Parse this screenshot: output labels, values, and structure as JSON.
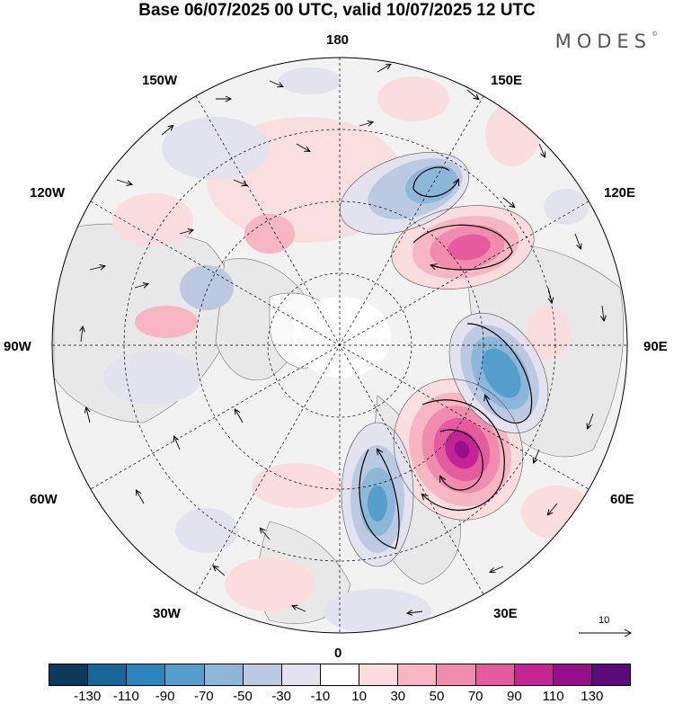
{
  "title": "Base 06/07/2025 00 UTC, valid 10/07/2025 12 UTC",
  "brand": "MODES",
  "brand_mark": "©",
  "longitude_labels": {
    "lon_180": "180",
    "lon_150w": "150W",
    "lon_150e": "150E",
    "lon_120w": "120W",
    "lon_120e": "120E",
    "lon_90w": "90W",
    "lon_90e": "90E",
    "lon_60w": "60W",
    "lon_60e": "60E",
    "lon_30w": "30W",
    "lon_30e": "30E",
    "lon_0": "0"
  },
  "vector_scale_label": "10",
  "colorbar": {
    "colors": [
      "#0b3a5c",
      "#166699",
      "#2b86be",
      "#549fcb",
      "#8db7d8",
      "#bcc9e3",
      "#e3e3f0",
      "#ffffff",
      "#fbdddd",
      "#f6b7c2",
      "#f08cad",
      "#e45c9e",
      "#c52495",
      "#951089",
      "#5b0b7c"
    ],
    "tick_labels": [
      "-130",
      "-110",
      "-90",
      "-70",
      "-50",
      "-30",
      "-10",
      "10",
      "30",
      "50",
      "70",
      "90",
      "110",
      "130"
    ]
  }
}
